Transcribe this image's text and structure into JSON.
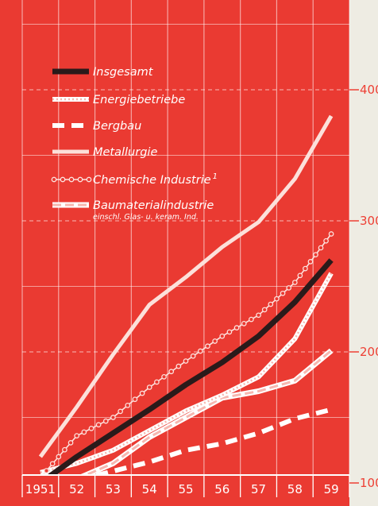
{
  "colors": {
    "panel": "#ea3a32",
    "paper": "#eeece3",
    "line_white": "#ffffff",
    "line_dark": "#2a1a1a",
    "pink": "#f6b7b0",
    "axis_text": "#ee4035"
  },
  "chart_data": {
    "type": "line",
    "categories": [
      "1951",
      "52",
      "53",
      "54",
      "55",
      "56",
      "57",
      "58",
      "59"
    ],
    "ylim": [
      100,
      470
    ],
    "y_ticks": [
      100,
      200,
      300,
      400
    ],
    "grid": true,
    "legend_position": "top-left",
    "series": [
      {
        "name": "Insgesamt",
        "style": "thick-dark",
        "values": [
          100,
          120,
          138,
          156,
          175,
          192,
          212,
          238,
          270
        ]
      },
      {
        "name": "Energiebetriebe",
        "style": "dotted-white",
        "values": [
          108,
          115,
          125,
          140,
          155,
          167,
          181,
          210,
          260
        ]
      },
      {
        "name": "Bergbau",
        "style": "dashed-white",
        "values": [
          107,
          102,
          109,
          116,
          125,
          130,
          138,
          149,
          156
        ]
      },
      {
        "name": "Metallurgie",
        "style": "solid-light",
        "values": [
          120,
          158,
          198,
          236,
          257,
          280,
          299,
          332,
          380
        ]
      },
      {
        "name": "Chemische Industrie",
        "name_superscript": "1",
        "style": "circles",
        "values": [
          104,
          136,
          150,
          173,
          193,
          212,
          228,
          253,
          290
        ]
      },
      {
        "name": "Baumaterialindustrie",
        "name_subline": "einschl. Glas- u. keram. Ind.",
        "style": "double-dashed",
        "values": [
          93,
          103,
          115,
          135,
          150,
          165,
          170,
          178,
          201
        ]
      }
    ]
  }
}
